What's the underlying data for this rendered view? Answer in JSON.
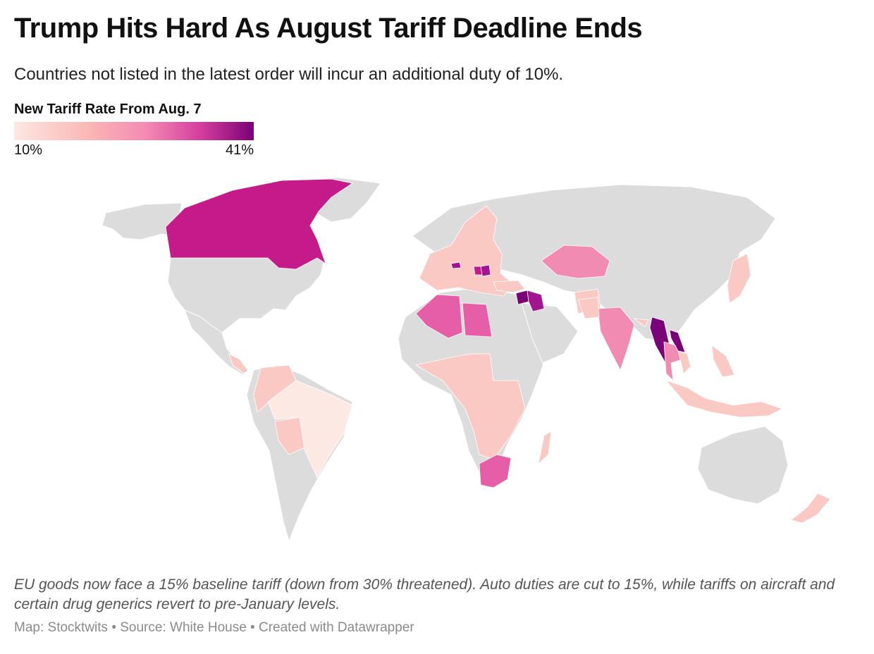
{
  "header": {
    "title": "Trump Hits Hard As August Tariff Deadline Ends",
    "subtitle": "Countries not listed in the latest order will incur an additional duty of 10%."
  },
  "legend": {
    "title": "New Tariff Rate From Aug. 7",
    "min_label": "10%",
    "max_label": "41%",
    "min_value": 10,
    "max_value": 41,
    "color_stops": [
      "#fde7e2",
      "#fbb9b6",
      "#f48ab4",
      "#d43d9e",
      "#7a0177"
    ],
    "no_data_color": "#dcdcdc"
  },
  "map": {
    "type": "choropleth",
    "colored_regions": [
      {
        "region": "canada",
        "tier": "high"
      },
      {
        "region": "brazil",
        "tier": "min"
      },
      {
        "region": "south-america-other",
        "tier": "low"
      },
      {
        "region": "central-america",
        "tier": "low"
      },
      {
        "region": "europe",
        "tier": "low"
      },
      {
        "region": "switzerland",
        "tier": "very-high"
      },
      {
        "region": "serbia",
        "tier": "very-high"
      },
      {
        "region": "bosnia",
        "tier": "high"
      },
      {
        "region": "kazakhstan",
        "tier": "mid"
      },
      {
        "region": "algeria",
        "tier": "mid-high"
      },
      {
        "region": "libya",
        "tier": "mid-high"
      },
      {
        "region": "syria",
        "tier": "max"
      },
      {
        "region": "iraq",
        "tier": "very-high"
      },
      {
        "region": "middle-east-other",
        "tier": "low"
      },
      {
        "region": "africa-sub-saharan",
        "tier": "low"
      },
      {
        "region": "south-africa",
        "tier": "mid-high"
      },
      {
        "region": "madagascar",
        "tier": "low"
      },
      {
        "region": "india",
        "tier": "mid"
      },
      {
        "region": "south-asia-other",
        "tier": "low"
      },
      {
        "region": "myanmar",
        "tier": "max"
      },
      {
        "region": "laos",
        "tier": "max"
      },
      {
        "region": "thailand",
        "tier": "mid"
      },
      {
        "region": "vietnam",
        "tier": "low"
      },
      {
        "region": "southeast-asia-islands",
        "tier": "low"
      },
      {
        "region": "japan",
        "tier": "low"
      },
      {
        "region": "new-zealand",
        "tier": "low"
      }
    ],
    "tier_colors": {
      "min": "#fde9e3",
      "low": "#fbc9c4",
      "mid": "#f28bb2",
      "mid-high": "#e65ea6",
      "high": "#c51b8a",
      "very-high": "#a3158f",
      "max": "#7a0177"
    }
  },
  "footer": {
    "note": "EU goods now face a 15% baseline tariff (down from 30% threatened). Auto duties are cut to 15%, while tariffs on aircraft and certain drug generics revert to pre-January levels.",
    "credit": "Map: Stocktwits • Source: White House • Created with Datawrapper"
  }
}
